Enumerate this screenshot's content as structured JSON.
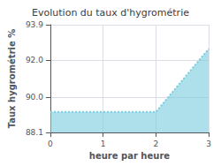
{
  "chart_data": {
    "type": "line",
    "title": "Evolution du taux d'hygrométrie",
    "xlabel": "heure par heure",
    "ylabel": "Taux hygrométrie %",
    "x": [
      0,
      1,
      2,
      3
    ],
    "values": [
      89.2,
      89.2,
      89.2,
      92.6
    ],
    "color": "#78cce0",
    "line_style": "dotted",
    "xlim": [
      0,
      3
    ],
    "xticks": [
      0,
      1,
      2,
      3
    ],
    "ylim": [
      88.1,
      93.9
    ],
    "yticks": [
      88.1,
      {
        "value": 90,
        "label": "90.0"
      },
      {
        "value": 92,
        "label": "92.0"
      },
      93.9
    ],
    "grid": true
  }
}
